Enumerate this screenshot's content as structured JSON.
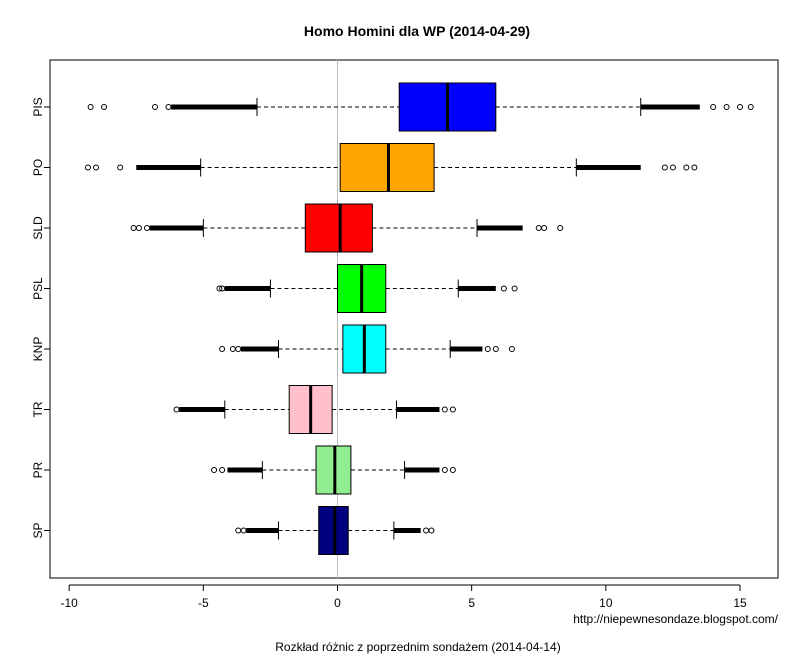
{
  "chart_data": {
    "type": "boxplot",
    "orientation": "horizontal",
    "title": "Homo Homini dla WP (2014-04-29)",
    "xlabel": "Rozkład różnic z poprzednim sondażem (2014-04-14)",
    "xlim": [
      -10.5,
      16.2
    ],
    "xticks": [
      -10,
      -5,
      0,
      5,
      10,
      15
    ],
    "reference_line_x": 0,
    "source_note": "http://niepewnesondaze.blogspot.com/",
    "series": [
      {
        "name": "PIS",
        "color": "#0000FF",
        "whisker_low": -3.0,
        "q1": 2.3,
        "median": 4.1,
        "q3": 5.9,
        "whisker_high": 11.3,
        "outliers_low": [
          -9.2,
          -8.7,
          -6.8,
          -6.3
        ],
        "outliers_high": [
          14.0,
          14.5,
          15.0,
          15.4
        ],
        "dense_low": [
          -6.2,
          -3.0
        ],
        "dense_high": [
          11.3,
          13.5
        ]
      },
      {
        "name": "PO",
        "color": "#FFA500",
        "whisker_low": -5.1,
        "q1": 0.1,
        "median": 1.9,
        "q3": 3.6,
        "whisker_high": 8.9,
        "outliers_low": [
          -9.3,
          -9.0,
          -8.1
        ],
        "outliers_high": [
          12.2,
          12.5,
          13.0,
          13.3
        ],
        "dense_low": [
          -7.5,
          -5.1
        ],
        "dense_high": [
          8.9,
          11.3
        ]
      },
      {
        "name": "SLD",
        "color": "#FF0000",
        "whisker_low": -5.0,
        "q1": -1.2,
        "median": 0.1,
        "q3": 1.3,
        "whisker_high": 5.2,
        "outliers_low": [
          -7.6,
          -7.4,
          -7.1
        ],
        "outliers_high": [
          7.5,
          7.7,
          8.3
        ],
        "dense_low": [
          -7.0,
          -5.0
        ],
        "dense_high": [
          5.2,
          6.9
        ]
      },
      {
        "name": "PSL",
        "color": "#00FF00",
        "whisker_low": -2.5,
        "q1": 0.0,
        "median": 0.9,
        "q3": 1.8,
        "whisker_high": 4.5,
        "outliers_low": [
          -4.4,
          -4.3
        ],
        "outliers_high": [
          6.2,
          6.6
        ],
        "dense_low": [
          -4.2,
          -2.5
        ],
        "dense_high": [
          4.5,
          5.9
        ]
      },
      {
        "name": "KNP",
        "color": "#00FFFF",
        "whisker_low": -2.2,
        "q1": 0.2,
        "median": 1.0,
        "q3": 1.8,
        "whisker_high": 4.2,
        "outliers_low": [
          -4.3,
          -3.9,
          -3.7
        ],
        "outliers_high": [
          5.6,
          5.9,
          6.5
        ],
        "dense_low": [
          -3.6,
          -2.2
        ],
        "dense_high": [
          4.2,
          5.4
        ]
      },
      {
        "name": "TR",
        "color": "#FFC0CB",
        "whisker_low": -4.2,
        "q1": -1.8,
        "median": -1.0,
        "q3": -0.2,
        "whisker_high": 2.2,
        "outliers_low": [
          -6.0
        ],
        "outliers_high": [
          4.0,
          4.3
        ],
        "dense_low": [
          -5.9,
          -4.2
        ],
        "dense_high": [
          2.2,
          3.8
        ]
      },
      {
        "name": "PR",
        "color": "#90EE90",
        "whisker_low": -2.8,
        "q1": -0.8,
        "median": -0.1,
        "q3": 0.5,
        "whisker_high": 2.5,
        "outliers_low": [
          -4.6,
          -4.3
        ],
        "outliers_high": [
          4.0,
          4.3
        ],
        "dense_low": [
          -4.1,
          -2.8
        ],
        "dense_high": [
          2.5,
          3.8
        ]
      },
      {
        "name": "SP",
        "color": "#000080",
        "whisker_low": -2.2,
        "q1": -0.7,
        "median": -0.1,
        "q3": 0.4,
        "whisker_high": 2.1,
        "outliers_low": [
          -3.7,
          -3.5
        ],
        "outliers_high": [
          3.3,
          3.5
        ],
        "dense_low": [
          -3.4,
          -2.2
        ],
        "dense_high": [
          2.1,
          3.1
        ]
      }
    ]
  }
}
